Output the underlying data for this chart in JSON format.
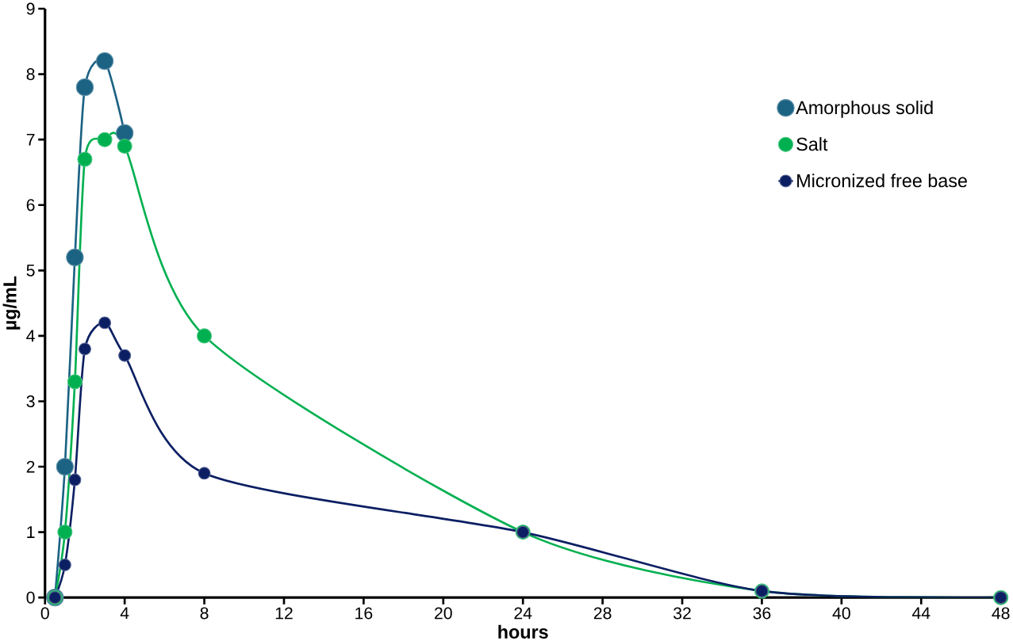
{
  "chart_data": {
    "type": "line",
    "xlabel": "hours",
    "ylabel": "µg/mL",
    "x": [
      0.5,
      1,
      1.5,
      2,
      3,
      4,
      8,
      24,
      36,
      48
    ],
    "series": [
      {
        "name": "Amorphous solid",
        "color": "#1b6283",
        "values": [
          0,
          2,
          5.2,
          7.8,
          8.2,
          7.1,
          null,
          null,
          null,
          null
        ]
      },
      {
        "name": "Salt",
        "color": "#00b050",
        "values": [
          0,
          1,
          3.3,
          6.7,
          7,
          6.9,
          4,
          1,
          0.1,
          0
        ]
      },
      {
        "name": "Micronized free base",
        "color": "#0c1f63",
        "values": [
          0,
          0.5,
          1.8,
          3.8,
          4.2,
          3.7,
          1.9,
          1,
          0.1,
          0
        ]
      }
    ],
    "xlim": [
      0,
      48
    ],
    "xticks": [
      0,
      4,
      8,
      12,
      16,
      20,
      24,
      28,
      32,
      36,
      40,
      44,
      48
    ],
    "ylim": [
      0,
      9
    ],
    "yticks": [
      0,
      1,
      2,
      3,
      4,
      5,
      6,
      7,
      8,
      9
    ],
    "legend": "top right",
    "marker": "circle",
    "line_style": "solid",
    "grid": false
  }
}
